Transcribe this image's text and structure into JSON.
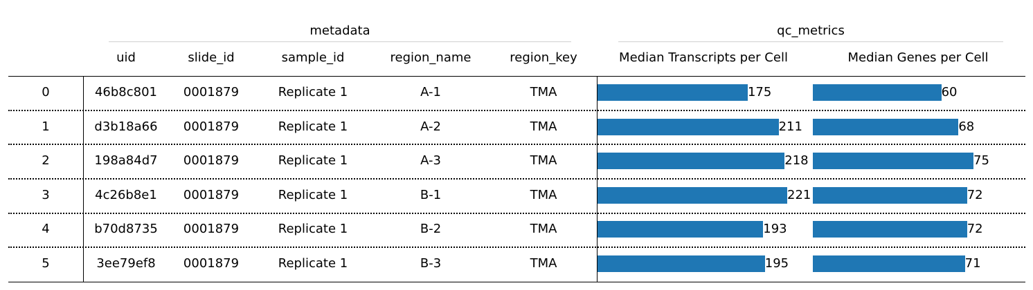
{
  "chart_data": {
    "type": "table",
    "groups": [
      {
        "label": "metadata",
        "columns": [
          "uid",
          "slide_id",
          "sample_id",
          "region_name",
          "region_key"
        ]
      },
      {
        "label": "qc_metrics",
        "columns": [
          "Median Transcripts per Cell",
          "Median Genes per Cell"
        ]
      }
    ],
    "index_label": "",
    "bar_color": "#1f77b4",
    "bar_scale": {
      "Median Transcripts per Cell": [
        0,
        221
      ],
      "Median Genes per Cell": [
        0,
        75
      ]
    },
    "rows": [
      {
        "index": "0",
        "uid": "46b8c801",
        "slide_id": "0001879",
        "sample_id": "Replicate 1",
        "region_name": "A-1",
        "region_key": "TMA",
        "Median Transcripts per Cell": 175,
        "Median Genes per Cell": 60
      },
      {
        "index": "1",
        "uid": "d3b18a66",
        "slide_id": "0001879",
        "sample_id": "Replicate 1",
        "region_name": "A-2",
        "region_key": "TMA",
        "Median Transcripts per Cell": 211,
        "Median Genes per Cell": 68
      },
      {
        "index": "2",
        "uid": "198a84d7",
        "slide_id": "0001879",
        "sample_id": "Replicate 1",
        "region_name": "A-3",
        "region_key": "TMA",
        "Median Transcripts per Cell": 218,
        "Median Genes per Cell": 75
      },
      {
        "index": "3",
        "uid": "4c26b8e1",
        "slide_id": "0001879",
        "sample_id": "Replicate 1",
        "region_name": "B-1",
        "region_key": "TMA",
        "Median Transcripts per Cell": 221,
        "Median Genes per Cell": 72
      },
      {
        "index": "4",
        "uid": "b70d8735",
        "slide_id": "0001879",
        "sample_id": "Replicate 1",
        "region_name": "B-2",
        "region_key": "TMA",
        "Median Transcripts per Cell": 193,
        "Median Genes per Cell": 72
      },
      {
        "index": "5",
        "uid": "3ee79ef8",
        "slide_id": "0001879",
        "sample_id": "Replicate 1",
        "region_name": "B-3",
        "region_key": "TMA",
        "Median Transcripts per Cell": 195,
        "Median Genes per Cell": 71
      }
    ]
  }
}
